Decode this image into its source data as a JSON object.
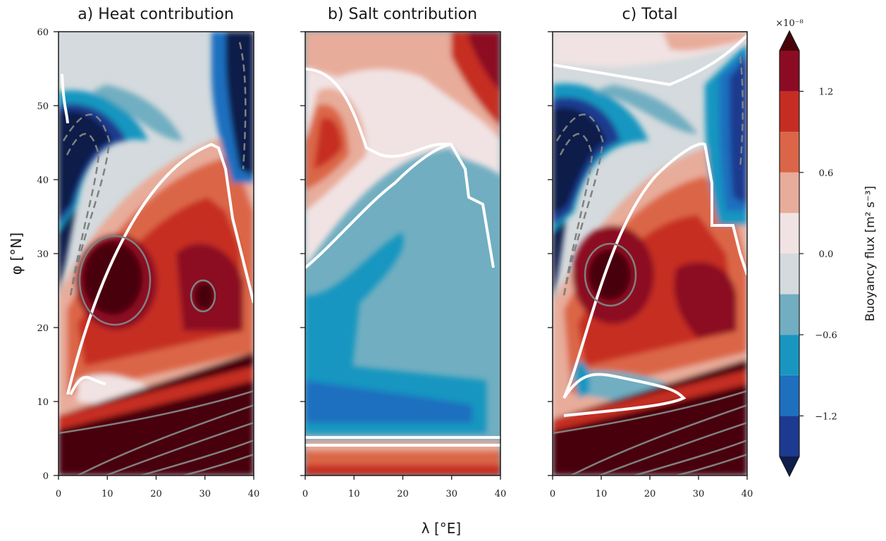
{
  "chart_data": [
    {
      "type": "heatmap",
      "panel": "a",
      "title": "a) Heat contribution",
      "xlim": [
        0,
        40
      ],
      "ylim": [
        0,
        60
      ],
      "xticks": [
        "0",
        "10",
        "20",
        "30",
        "40"
      ],
      "yticks": [
        "0",
        "10",
        "20",
        "30",
        "40",
        "50",
        "60"
      ],
      "ylabel": "φ [°N]",
      "field_description": "strong positive buoyancy flux (dark red) south of 10°N and a maximum near 15°E,25°N; strong negative flux (dark blue) along western boundary north of 20°N and eastern boundary north of 40°N; zero contour (white) runs from 2°E,12°N up to 30°E,45°N"
    },
    {
      "type": "heatmap",
      "panel": "b",
      "title": "b) Salt contribution",
      "xlim": [
        0,
        40
      ],
      "ylim": [
        0,
        60
      ],
      "xticks": [
        "0",
        "10",
        "20",
        "30",
        "40"
      ],
      "field_description": "positive values (red) in bands south of 5°N and in the north-west near 5°E,45°N and north-east corner; negative values (blue) over most of the basin between 5°N and 40°N with minimum near 10°E,8°N"
    },
    {
      "type": "heatmap",
      "panel": "c",
      "title": "c) Total",
      "xlim": [
        0,
        40
      ],
      "ylim": [
        0,
        60
      ],
      "xticks": [
        "0",
        "10",
        "20",
        "30",
        "40"
      ],
      "field_description": "similar to heat contribution: positive south of 10°N and maximum near 13°E,27°N; negative along western boundary 20–50°N and eastern boundary 35–55°N; zero contour from 3°E,12°N to 30°E,45°N and 0°E,55°N to 40°E,50°N"
    }
  ],
  "shared": {
    "xlabel": "λ [°E]"
  },
  "colorbar": {
    "label": "Buoyancy flux [m² s⁻³]",
    "multiplier": "×10⁻⁸",
    "ticks": [
      "1.2",
      "0.6",
      "0.0",
      "−0.6",
      "−1.2"
    ],
    "levels": [
      -1.5,
      -1.2,
      -0.9,
      -0.6,
      -0.3,
      0.0,
      0.3,
      0.6,
      0.9,
      1.2,
      1.5
    ],
    "colors": [
      "#0f1d4a",
      "#1c3a8f",
      "#1f6fbf",
      "#1996c0",
      "#71aec1",
      "#d4dadd",
      "#f1e3e3",
      "#e8ac9a",
      "#db6647",
      "#c62d22",
      "#8c0b24",
      "#480309"
    ],
    "extend": "both"
  }
}
